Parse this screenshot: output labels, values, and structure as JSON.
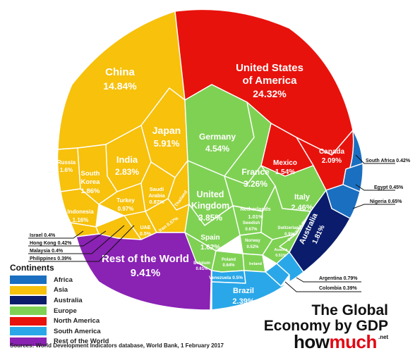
{
  "chart_data": {
    "type": "voronoi-treemap",
    "title": "The Global Economy by GDP",
    "groups": [
      {
        "name": "Africa",
        "color": "#1a6fc0",
        "countries": [
          {
            "name": "South Africa",
            "value": 0.42
          },
          {
            "name": "Egypt",
            "value": 0.45
          },
          {
            "name": "Nigeria",
            "value": 0.65
          }
        ]
      },
      {
        "name": "Asia",
        "color": "#f7c10c",
        "countries": [
          {
            "name": "China",
            "value": 14.84
          },
          {
            "name": "Japan",
            "value": 5.91
          },
          {
            "name": "India",
            "value": 2.83
          },
          {
            "name": "South Korea",
            "value": 1.86
          },
          {
            "name": "Russia",
            "value": 1.6
          },
          {
            "name": "Indonesia",
            "value": 1.16
          },
          {
            "name": "Turkey",
            "value": 0.97
          },
          {
            "name": "Saudi Arabia",
            "value": 0.87
          },
          {
            "name": "UAE",
            "value": 0.5
          },
          {
            "name": "Iran",
            "value": 0.57
          },
          {
            "name": "Thailand",
            "value": 0.53
          },
          {
            "name": "Israel",
            "value": 0.4
          },
          {
            "name": "Hong Kong",
            "value": 0.42
          },
          {
            "name": "Malaysia",
            "value": 0.4
          },
          {
            "name": "Philippines",
            "value": 0.39
          }
        ]
      },
      {
        "name": "Australia",
        "color": "#0a1c6b",
        "countries": [
          {
            "name": "Australia",
            "value": 1.81
          }
        ]
      },
      {
        "name": "Europe",
        "color": "#7fd154",
        "countries": [
          {
            "name": "Germany",
            "value": 4.54
          },
          {
            "name": "United Kingdom",
            "value": 3.85
          },
          {
            "name": "France",
            "value": 3.26
          },
          {
            "name": "Italy",
            "value": 2.46
          },
          {
            "name": "Spain",
            "value": 1.62
          },
          {
            "name": "Netherlands",
            "value": 1.01
          },
          {
            "name": "Sweden",
            "value": 0.67
          },
          {
            "name": "Switzerland",
            "value": 0.9
          },
          {
            "name": "Belgium",
            "value": 0.61
          },
          {
            "name": "Poland",
            "value": 0.64
          },
          {
            "name": "Norway",
            "value": 0.52
          },
          {
            "name": "Austria",
            "value": 0.51
          },
          {
            "name": "Ireland",
            "value": 0.38
          },
          {
            "name": "Denmark",
            "value": 0.4
          }
        ]
      },
      {
        "name": "North America",
        "color": "#e8120c",
        "countries": [
          {
            "name": "United States of America",
            "value": 24.32
          },
          {
            "name": "Canada",
            "value": 2.09
          },
          {
            "name": "Mexico",
            "value": 1.54
          }
        ]
      },
      {
        "name": "South America",
        "color": "#2aa7e8",
        "countries": [
          {
            "name": "Brazil",
            "value": 2.39
          },
          {
            "name": "Argentina",
            "value": 0.79
          },
          {
            "name": "Colombia",
            "value": 0.39
          },
          {
            "name": "Venezuela",
            "value": 0.5
          }
        ]
      },
      {
        "name": "Rest of the World",
        "color": "#8a22b4",
        "countries": [
          {
            "name": "Rest of the World",
            "value": 9.41
          }
        ]
      }
    ]
  },
  "legend": {
    "title": "Continents",
    "items": [
      {
        "label": "Africa",
        "color": "#1a6fc0"
      },
      {
        "label": "Asia",
        "color": "#f7c10c"
      },
      {
        "label": "Australia",
        "color": "#0a1c6b"
      },
      {
        "label": "Europe",
        "color": "#7fd154"
      },
      {
        "label": "North America",
        "color": "#e8120c"
      },
      {
        "label": "South America",
        "color": "#2aa7e8"
      },
      {
        "label": "Rest of the World",
        "color": "#8a22b4"
      }
    ]
  },
  "labels": {
    "china_name": "China",
    "china_val": "14.84%",
    "usa_name1": "United States",
    "usa_name2": "of America",
    "usa_val": "24.32%",
    "japan_name": "Japan",
    "japan_val": "5.91%",
    "india_name": "India",
    "india_val": "2.83%",
    "russia_name": "Russia",
    "russia_val": "1.6%",
    "korea_name1": "South",
    "korea_name2": "Korea",
    "korea_val": "1.86%",
    "indonesia_name": "Indonesia",
    "indonesia_val": "1.16%",
    "turkey_name": "Turkey",
    "turkey_val": "0.97%",
    "saudi_name1": "Saudi",
    "saudi_name2": "Arabia",
    "saudi_val": "0.87%",
    "uae_name": "UAE",
    "uae_val": "0.5%",
    "iran_text": "Iran 0.57%",
    "thailand_text": "Thailand",
    "germany_name": "Germany",
    "germany_val": "4.54%",
    "france_name": "France",
    "france_val": "3.26%",
    "uk_name1": "United",
    "uk_name2": "Kingdom",
    "uk_val": "3.85%",
    "italy_name": "Italy",
    "italy_val": "2.46%",
    "spain_name": "Spain",
    "spain_val": "1.62%",
    "netherlands_name": "Netherlands",
    "netherlands_val": "1.01%",
    "sweden_name": "Swedish",
    "sweden_val": "0.67%",
    "switzerland_name": "Switzerland",
    "switzerland_val": "0.9%",
    "norway_name": "Norway",
    "norway_val": "0.52%",
    "belgium_name": "Belgium",
    "belgium_val": "0.61%",
    "poland_name": "Poland",
    "poland_val": "0.64%",
    "austria_name": "Austria",
    "austria_val": "0.51%",
    "denmark_text": "Denmark 0.4%",
    "ireland_text": "Ireland",
    "canada_name": "Canada",
    "canada_val": "2.09%",
    "mexico_name": "Mexico",
    "mexico_val": "1.54%",
    "australia_name": "Australia",
    "australia_val": "1.81%",
    "brazil_name": "Brazil",
    "brazil_val": "2.39%",
    "venezuela_text": "Venezuela 0.5%",
    "rest_name": "Rest of the World",
    "rest_val": "9.41%",
    "callout_south_africa": "South Africa 0.42%",
    "callout_egypt": "Egypt 0.45%",
    "callout_nigeria": "Nigeria 0.65%",
    "callout_argentina": "Argentina 0.79%",
    "callout_colombia": "Colombia 0.39%",
    "callout_israel": "Israel 0.4%",
    "callout_hongkong": "Hong Kong 0.42%",
    "callout_malaysia": "Malaysia 0.4%",
    "callout_philippines": "Philippines 0.39%"
  },
  "title": {
    "line1": "The Global",
    "line2": "Economy by GDP"
  },
  "brand": {
    "how": "how",
    "much": "much",
    "net": ".net"
  },
  "source": "Sources: World Development Indicators database, World Bank, 1 February 2017"
}
